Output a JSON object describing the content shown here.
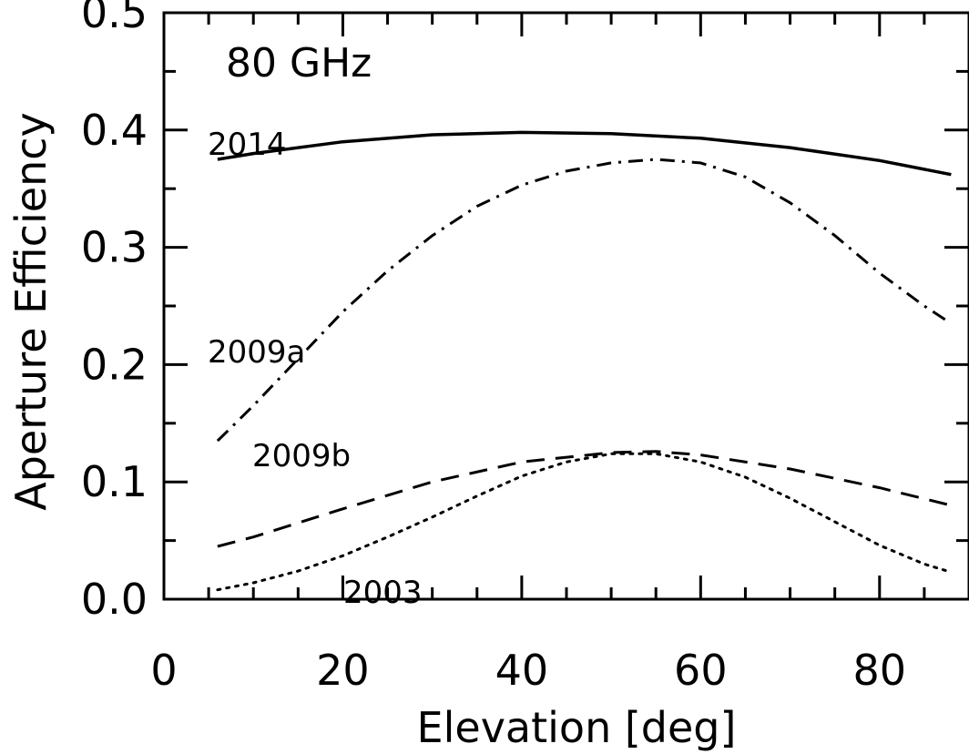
{
  "chart_data": {
    "type": "line",
    "title": "",
    "annotation": "80 GHz",
    "xlabel": "Elevation [deg]",
    "ylabel": "Aperture Efficiency",
    "xlim": [
      0,
      90
    ],
    "ylim": [
      0,
      0.5
    ],
    "xticks": [
      0,
      20,
      40,
      60,
      80
    ],
    "xtick_labels": [
      "0",
      "20",
      "40",
      "60",
      "80"
    ],
    "yticks": [
      0.0,
      0.1,
      0.2,
      0.3,
      0.4,
      0.5
    ],
    "ytick_labels": [
      "0.0",
      "0.1",
      "0.2",
      "0.3",
      "0.4",
      "0.5"
    ],
    "grid": false,
    "legend": "none",
    "series": [
      {
        "name": "2014",
        "style": "solid",
        "x": [
          6,
          10,
          20,
          30,
          40,
          50,
          60,
          70,
          80,
          88
        ],
        "y": [
          0.375,
          0.38,
          0.39,
          0.396,
          0.398,
          0.397,
          0.393,
          0.385,
          0.374,
          0.362
        ]
      },
      {
        "name": "2009b",
        "style": "dashdot",
        "x": [
          6,
          10,
          15,
          20,
          25,
          30,
          35,
          40,
          45,
          50,
          55,
          60,
          65,
          70,
          75,
          80,
          85,
          88
        ],
        "y": [
          0.135,
          0.165,
          0.205,
          0.245,
          0.28,
          0.31,
          0.335,
          0.353,
          0.365,
          0.372,
          0.375,
          0.372,
          0.36,
          0.338,
          0.31,
          0.278,
          0.25,
          0.235
        ]
      },
      {
        "name": "2009a",
        "style": "dashed",
        "x": [
          6,
          10,
          20,
          30,
          40,
          50,
          55,
          60,
          70,
          80,
          88
        ],
        "y": [
          0.045,
          0.053,
          0.077,
          0.1,
          0.117,
          0.125,
          0.126,
          0.123,
          0.111,
          0.095,
          0.08
        ]
      },
      {
        "name": "2003",
        "style": "dotted",
        "x": [
          6,
          10,
          15,
          20,
          25,
          30,
          35,
          40,
          45,
          50,
          55,
          60,
          65,
          70,
          75,
          80,
          85,
          88
        ],
        "y": [
          0.008,
          0.014,
          0.024,
          0.037,
          0.053,
          0.07,
          0.088,
          0.105,
          0.117,
          0.124,
          0.124,
          0.117,
          0.104,
          0.086,
          0.066,
          0.046,
          0.03,
          0.023
        ]
      }
    ]
  }
}
